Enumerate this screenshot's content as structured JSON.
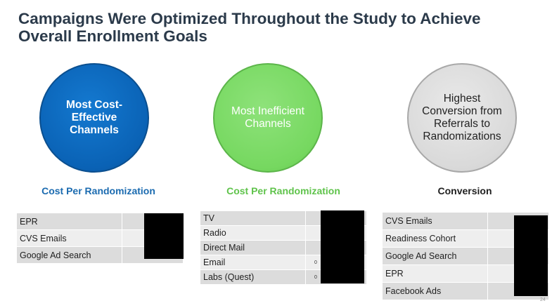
{
  "title": "Campaigns Were Optimized Throughout the Study to Achieve Overall Enrollment Goals",
  "circles": [
    {
      "text": "Most Cost-Effective Channels",
      "color": "#0a62b5"
    },
    {
      "text": "Most Inefficient Channels",
      "color": "#76d860"
    },
    {
      "text": "Highest Conversion from Referrals to Randomizations",
      "color": "#d9d9d9"
    }
  ],
  "columns": [
    {
      "heading": "Cost Per Randomization",
      "color": "#1b6bb0",
      "rows": [
        "EPR",
        "CVS Emails",
        "Google Ad Search"
      ]
    },
    {
      "heading": "Cost Per Randomization",
      "color": "#5fc34b",
      "rows": [
        "TV",
        "Radio",
        "Direct Mail",
        "Email",
        "Labs (Quest)"
      ],
      "partial_values": [
        "",
        "",
        "",
        "0",
        "0"
      ]
    },
    {
      "heading": "Conversion",
      "color": "#1f1f1f",
      "rows": [
        "CVS Emails",
        "Readiness Cohort",
        "Google Ad Search",
        "EPR",
        "Facebook Ads"
      ]
    }
  ],
  "page_number": "24"
}
